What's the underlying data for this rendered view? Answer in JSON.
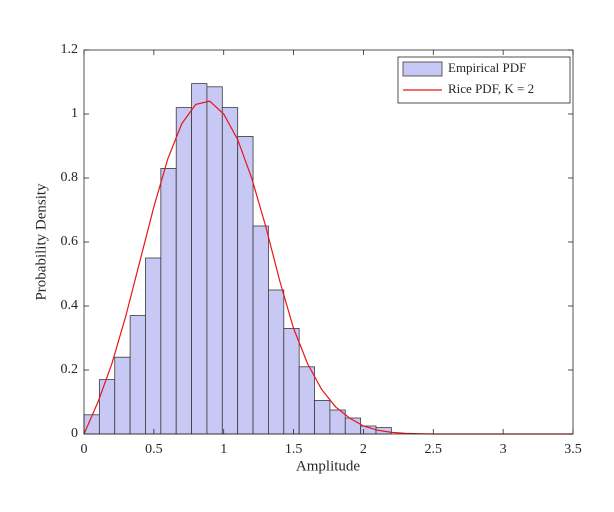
{
  "chart_data": {
    "type": "histogram",
    "xlabel": "Amplitude",
    "ylabel": "Probability Density",
    "bins": [
      0,
      0.11,
      0.22,
      0.33,
      0.44,
      0.55,
      0.66,
      0.77,
      0.88,
      0.99,
      1.1,
      1.21,
      1.32,
      1.43,
      1.54,
      1.65,
      1.76,
      1.87,
      1.98,
      2.09,
      2.2
    ],
    "series": [
      {
        "name": "Empirical PDF",
        "color": "#c8c8f5",
        "values": [
          0.06,
          0.17,
          0.24,
          0.37,
          0.55,
          0.83,
          1.02,
          1.095,
          1.085,
          1.02,
          0.93,
          0.65,
          0.45,
          0.33,
          0.21,
          0.105,
          0.075,
          0.05,
          0.025,
          0.02
        ]
      },
      {
        "name": "Rice PDF, K = 2",
        "color": "#e8141b",
        "type": "line",
        "x": [
          0,
          0.1,
          0.2,
          0.3,
          0.4,
          0.5,
          0.6,
          0.7,
          0.8,
          0.9,
          1.0,
          1.1,
          1.2,
          1.3,
          1.4,
          1.5,
          1.6,
          1.7,
          1.8,
          1.9,
          2.0,
          2.1,
          2.2,
          2.3,
          2.4,
          2.5,
          2.6,
          2.7,
          2.8,
          2.9,
          3.0,
          3.1,
          3.2,
          3.3,
          3.4,
          3.5
        ],
        "values": [
          0,
          0.1,
          0.22,
          0.37,
          0.54,
          0.71,
          0.86,
          0.97,
          1.03,
          1.04,
          1.0,
          0.92,
          0.8,
          0.65,
          0.48,
          0.33,
          0.22,
          0.14,
          0.085,
          0.05,
          0.025,
          0.012,
          0.005,
          0.002,
          0.001,
          0,
          0,
          0,
          0,
          0,
          0,
          0,
          0,
          0,
          0,
          0
        ]
      }
    ],
    "xlim": [
      0,
      3.5
    ],
    "ylim": [
      0,
      1.2
    ],
    "xticks": [
      0,
      0.5,
      1,
      1.5,
      2,
      2.5,
      3,
      3.5
    ],
    "yticks": [
      0,
      0.2,
      0.4,
      0.6,
      0.8,
      1,
      1.2
    ],
    "legend": "upper right"
  }
}
